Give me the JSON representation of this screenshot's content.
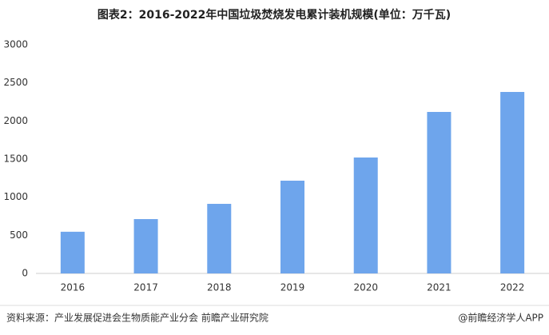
{
  "chart_data": {
    "type": "bar",
    "title": "图表2：2016-2022年中国垃圾焚烧发电累计装机规模(单位：万千瓦)",
    "categories": [
      "2016",
      "2017",
      "2018",
      "2019",
      "2020",
      "2021",
      "2022"
    ],
    "values": [
      547,
      713,
      913,
      1217,
      1521,
      2119,
      2381
    ],
    "color": "#6ea5ec",
    "ylim": [
      0,
      3000
    ],
    "yticks": [
      0,
      500,
      1000,
      1500,
      2000,
      2500,
      3000
    ],
    "grid": false
  },
  "footer": {
    "source": "资料来源：产业发展促进会生物质能产业分会 前瞻产业研究院",
    "brand": "@前瞻经济学人APP"
  }
}
